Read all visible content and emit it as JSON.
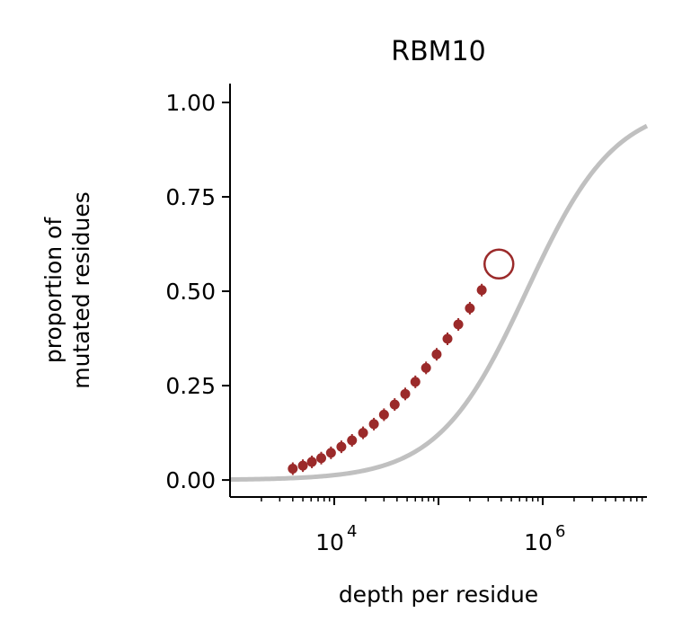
{
  "chart_data": {
    "type": "scatter",
    "title": "RBM10",
    "xlabel": "depth per residue",
    "ylabel_lines": [
      "proportion of",
      "mutated residues"
    ],
    "x_scale": "log",
    "xlim": [
      1000,
      10000000
    ],
    "ylim": [
      -0.045,
      1.05
    ],
    "x_ticks": [
      {
        "value": 10000,
        "base": "10",
        "exp": "4"
      },
      {
        "value": 1000000,
        "base": "10",
        "exp": "6"
      }
    ],
    "y_ticks": [
      {
        "value": 0.0,
        "label": "0.00"
      },
      {
        "value": 0.25,
        "label": "0.25"
      },
      {
        "value": 0.5,
        "label": "0.50"
      },
      {
        "value": 0.75,
        "label": "0.75"
      },
      {
        "value": 1.0,
        "label": "1.00"
      }
    ],
    "grid": false,
    "colors": {
      "points": "#9b2a2a",
      "curve": "#c0c0c0",
      "axis": "#000000"
    },
    "expected_curve": {
      "description_type": "sigmoid in log10(depth)",
      "midpoint_depth": 700000,
      "steepness_log10": 2.35,
      "floor": 0.0
    },
    "series": [
      {
        "marker": "filled-dot",
        "points": [
          {
            "x": 4000,
            "y": 0.03
          },
          {
            "x": 5000,
            "y": 0.038
          },
          {
            "x": 6100,
            "y": 0.048
          },
          {
            "x": 7500,
            "y": 0.058
          },
          {
            "x": 9300,
            "y": 0.072
          },
          {
            "x": 11700,
            "y": 0.088
          },
          {
            "x": 14800,
            "y": 0.105
          },
          {
            "x": 18900,
            "y": 0.125
          },
          {
            "x": 24000,
            "y": 0.148
          },
          {
            "x": 30000,
            "y": 0.173
          },
          {
            "x": 38000,
            "y": 0.2
          },
          {
            "x": 48000,
            "y": 0.228
          },
          {
            "x": 60000,
            "y": 0.26
          },
          {
            "x": 76000,
            "y": 0.297
          },
          {
            "x": 96000,
            "y": 0.333
          },
          {
            "x": 122000,
            "y": 0.374
          },
          {
            "x": 155000,
            "y": 0.412
          },
          {
            "x": 200000,
            "y": 0.455
          },
          {
            "x": 260000,
            "y": 0.503
          }
        ]
      },
      {
        "marker": "open-circle",
        "points": [
          {
            "x": 380000,
            "y": 0.572
          }
        ]
      }
    ]
  }
}
